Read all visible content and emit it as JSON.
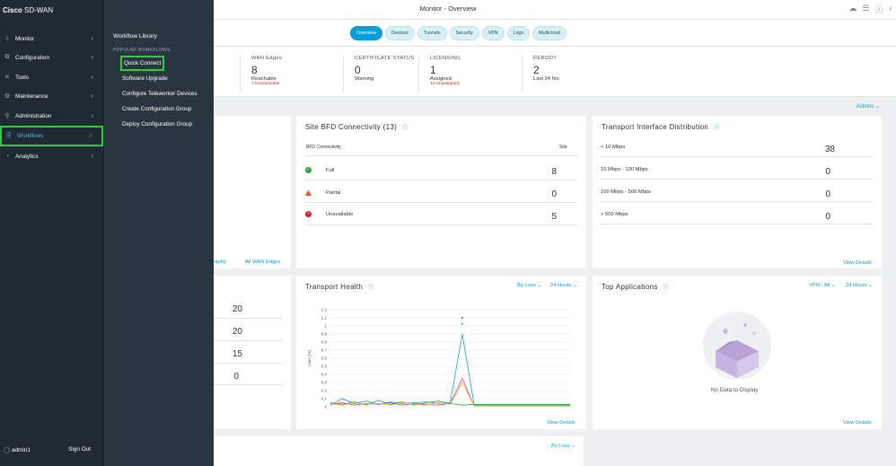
{
  "header": {
    "breadcrumb_section": "Monitor",
    "breadcrumb_sep": " - ",
    "breadcrumb_page": "Overview",
    "icons": [
      "cloud-icon",
      "menu-icon",
      "help-icon",
      "bell-icon"
    ]
  },
  "tabs": [
    {
      "label": "Overview",
      "active": true
    },
    {
      "label": "Devices",
      "active": false
    },
    {
      "label": "Tunnels",
      "active": false
    },
    {
      "label": "Security",
      "active": false
    },
    {
      "label": "VPN",
      "active": false
    },
    {
      "label": "Logs",
      "active": false
    },
    {
      "label": "Multicloud",
      "active": false
    }
  ],
  "stats": {
    "wan_edges": {
      "label": "WAN Edges",
      "value": "8",
      "sub": "Reachable",
      "bad": "7 Unreachable"
    },
    "certificate": {
      "label": "CERTIFICATE STATUS",
      "value": "0",
      "sub": "Warning"
    },
    "licensing": {
      "label": "LICENSING",
      "value": "1",
      "sub": "Assigned",
      "bad": "14 Unassigned"
    },
    "reboot": {
      "label": "REBOOT",
      "value": "2",
      "sub": "Last 24 hrs"
    }
  },
  "actions_label": "Actions ⌄",
  "left_card": {
    "links": [
      "graphy",
      "All WAN Edges"
    ],
    "values": [
      "20",
      "20",
      "15",
      "0"
    ]
  },
  "bfd": {
    "title": "Site BFD Connectivity (13)",
    "col_left": "BFD Connectivity",
    "col_right": "Site",
    "rows": [
      {
        "label": "Full",
        "value": "8",
        "status": "ok",
        "color": "#2fa34a"
      },
      {
        "label": "Partial",
        "value": "0",
        "status": "warn",
        "color": "#e8542f"
      },
      {
        "label": "Unavailable",
        "value": "5",
        "status": "err",
        "color": "#d4232a"
      }
    ]
  },
  "transport_dist": {
    "title": "Transport Interface Distribution",
    "rows": [
      {
        "label": "< 10 Mbps",
        "value": "38"
      },
      {
        "label": "10 Mbps - 100 Mbps",
        "value": "0"
      },
      {
        "label": "100 Mbps - 500 Mbps",
        "value": "0"
      },
      {
        "label": "> 500 Mbps",
        "value": "0"
      }
    ],
    "link": "View Details"
  },
  "transport_health": {
    "title": "Transport Health",
    "filter1": "By Loss ⌄",
    "filter2": "24 Hours ⌄",
    "link": "View Details"
  },
  "top_apps": {
    "title": "Top Applications",
    "filter1": "VPN - All ⌄",
    "filter2": "24 Hours ⌄",
    "empty": "No Data to Display",
    "link": "View Details"
  },
  "bottom_card": {
    "filter": "By Loss ⌄"
  },
  "chart_data": {
    "type": "line",
    "title": "",
    "ylabel": "Loss (%)",
    "xlabel": "",
    "ylim": [
      0,
      1.2
    ],
    "yticks": [
      "1.2",
      "1.1",
      "1",
      "0.9",
      "0.8",
      "0.7",
      "0.6",
      "0.5",
      "0.4",
      "0.3",
      "0.2",
      "0.1",
      "0"
    ],
    "x": [
      0,
      1,
      2,
      3,
      4,
      5,
      6,
      7,
      8,
      9,
      10,
      11,
      12,
      13,
      14,
      15,
      16,
      17,
      18,
      19,
      20
    ],
    "series": [
      {
        "color": "#1f9bd6",
        "values": [
          0.02,
          0.1,
          0.04,
          0.07,
          0.03,
          0.06,
          0.04,
          0.05,
          0.06,
          0.04,
          0.05,
          0.9,
          0.02,
          0.02,
          0.02,
          0.02,
          0.02,
          0.02,
          0.02,
          0.02,
          0.02
        ]
      },
      {
        "color": "#2fa34a",
        "values": [
          0.05,
          0.03,
          0.06,
          0.02,
          0.08,
          0.03,
          0.06,
          0.02,
          0.05,
          0.07,
          0.04,
          0.02,
          0.03,
          0.03,
          0.03,
          0.03,
          0.03,
          0.03,
          0.03,
          0.03,
          0.03
        ]
      },
      {
        "color": "#c94bbf",
        "values": [
          0.03,
          0.05,
          0.02,
          0.04,
          0.03,
          0.05,
          0.02,
          0.04,
          0.03,
          0.02,
          0.04,
          0.35,
          0.01,
          0.01,
          0.01,
          0.01,
          0.01,
          0.01,
          0.01,
          0.01,
          0.01
        ]
      },
      {
        "color": "#e0b82b",
        "values": [
          0.04,
          0.02,
          0.05,
          0.03,
          0.04,
          0.02,
          0.05,
          0.03,
          0.02,
          0.05,
          0.03,
          0.3,
          0.01,
          0.01,
          0.01,
          0.01,
          0.01,
          0.01,
          0.01,
          0.01,
          0.01
        ]
      }
    ]
  },
  "sidebar": {
    "brand_bold": "Cisco",
    "brand": " SD-WAN",
    "items": [
      {
        "label": "Monitor",
        "icon": "chart-icon"
      },
      {
        "label": "Configuration",
        "icon": "config-icon"
      },
      {
        "label": "Tools",
        "icon": "tools-icon"
      },
      {
        "label": "Maintenance",
        "icon": "maintenance-icon"
      },
      {
        "label": "Administration",
        "icon": "admin-icon"
      },
      {
        "label": "Workflows",
        "icon": "workflow-icon",
        "active": true
      },
      {
        "label": "Analytics",
        "icon": "analytics-icon"
      }
    ],
    "user": "admin1",
    "signout": "Sign Out"
  },
  "flyout": {
    "title": "Workflow Library",
    "section": "POPULAR WORKFLOWS",
    "items": [
      {
        "label": "Quick Connect",
        "active": true
      },
      {
        "label": "Software Upgrade"
      },
      {
        "label": "Configure Teleworker Devices"
      },
      {
        "label": "Create Configuration Group"
      },
      {
        "label": "Deploy Configuration Group"
      }
    ]
  }
}
